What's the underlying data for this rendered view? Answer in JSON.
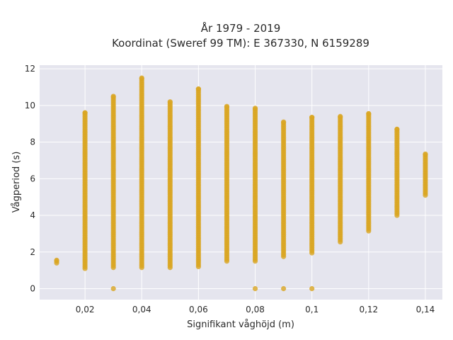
{
  "chart_data": {
    "type": "scatter",
    "title": "År 1979 - 2019",
    "subtitle": "Koordinat (Sweref 99 TM): E 367330, N 6159289",
    "xlabel": "Signifikant våghöjd (m)",
    "ylabel": "Vågperiod (s)",
    "xlim": [
      0.004,
      0.146
    ],
    "ylim": [
      -0.6,
      12.2
    ],
    "x_ticks": [
      0.02,
      0.04,
      0.06,
      0.08,
      0.1,
      0.12,
      0.14
    ],
    "x_tick_labels": [
      "0,02",
      "0,04",
      "0,06",
      "0,08",
      "0,1",
      "0,12",
      "0,14"
    ],
    "y_ticks": [
      0,
      2,
      4,
      6,
      8,
      10,
      12
    ],
    "y_tick_labels": [
      "0",
      "2",
      "4",
      "6",
      "8",
      "10",
      "12"
    ],
    "grid": true,
    "marker_color": "#DAA520",
    "plot_background": "#E5E5EE",
    "columns": [
      {
        "x": 0.01,
        "y_min": 1.4,
        "y_max": 1.55,
        "outliers": []
      },
      {
        "x": 0.02,
        "y_min": 1.1,
        "y_max": 9.6,
        "outliers": []
      },
      {
        "x": 0.03,
        "y_min": 1.15,
        "y_max": 10.5,
        "outliers": [
          0
        ]
      },
      {
        "x": 0.04,
        "y_min": 1.15,
        "y_max": 11.5,
        "outliers": []
      },
      {
        "x": 0.05,
        "y_min": 1.15,
        "y_max": 10.2,
        "outliers": []
      },
      {
        "x": 0.06,
        "y_min": 1.2,
        "y_max": 10.9,
        "outliers": []
      },
      {
        "x": 0.07,
        "y_min": 1.5,
        "y_max": 9.95,
        "outliers": []
      },
      {
        "x": 0.08,
        "y_min": 1.5,
        "y_max": 9.85,
        "outliers": [
          0
        ]
      },
      {
        "x": 0.09,
        "y_min": 1.75,
        "y_max": 9.1,
        "outliers": [
          0
        ]
      },
      {
        "x": 0.1,
        "y_min": 1.95,
        "y_max": 9.35,
        "outliers": [
          0
        ]
      },
      {
        "x": 0.11,
        "y_min": 2.55,
        "y_max": 9.4,
        "outliers": []
      },
      {
        "x": 0.12,
        "y_min": 3.15,
        "y_max": 9.55,
        "outliers": []
      },
      {
        "x": 0.13,
        "y_min": 4.0,
        "y_max": 8.7,
        "outliers": []
      },
      {
        "x": 0.14,
        "y_min": 5.1,
        "y_max": 7.35,
        "outliers": []
      }
    ]
  }
}
